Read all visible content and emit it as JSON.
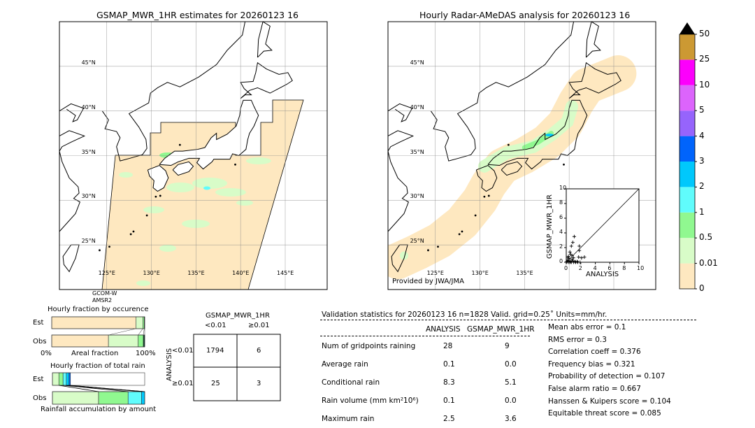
{
  "left_map": {
    "title": "GSMAP_MWR_1HR estimates for 20260123 16",
    "lat_labels": [
      "45°N",
      "40°N",
      "35°N",
      "30°N",
      "25°N"
    ],
    "lon_labels": [
      "125°E",
      "130°E",
      "135°E",
      "140°E",
      "145°E"
    ],
    "satellite_label_1": "GCOM-W",
    "satellite_label_2": "AMSR2"
  },
  "right_map": {
    "title": "Hourly Radar-AMeDAS analysis for 20260123 16",
    "lat_labels": [
      "45°N",
      "40°N",
      "35°N",
      "30°N",
      "25°N"
    ],
    "lon_labels": [
      "125°E",
      "130°E",
      "135°E"
    ],
    "credit": "Provided by JWA/JMA"
  },
  "colorbar": {
    "ticks": [
      "0",
      "0.01",
      "0.5",
      "1",
      "2",
      "3",
      "4",
      "5",
      "10",
      "25",
      "50"
    ],
    "colors": [
      "#fee8c0",
      "#d8fcc8",
      "#90f890",
      "#60fcfc",
      "#00c8fc",
      "#0064fc",
      "#9664fc",
      "#dc64fc",
      "#fc00fc",
      "#cc9933"
    ],
    "over_color": "#000000"
  },
  "scatter": {
    "xlabel": "ANALYSIS",
    "ylabel": "GSMAP_MWR_1HR",
    "ticks": [
      "0",
      "2",
      "4",
      "6",
      "8",
      "10"
    ],
    "range": [
      0,
      10
    ],
    "points": [
      [
        1.1,
        3.5
      ],
      [
        0.9,
        2.7
      ],
      [
        0.7,
        2.2
      ],
      [
        1.8,
        2.2
      ],
      [
        0.5,
        1.4
      ],
      [
        0.6,
        1.1
      ],
      [
        1.8,
        1.6
      ],
      [
        0.3,
        0.8
      ],
      [
        0.8,
        0.9
      ],
      [
        1.7,
        0.7
      ],
      [
        2.1,
        0.6
      ],
      [
        2.5,
        0.7
      ],
      [
        0.2,
        0.3
      ],
      [
        0.4,
        0.2
      ],
      [
        0.6,
        0.1
      ],
      [
        0.9,
        0.2
      ],
      [
        1.2,
        0.1
      ],
      [
        1.5,
        0.1
      ],
      [
        0.1,
        0.1
      ],
      [
        0.3,
        0.0
      ],
      [
        0.5,
        0.0
      ],
      [
        0.7,
        0.0
      ],
      [
        1.0,
        0.0
      ],
      [
        1.3,
        0.0
      ],
      [
        0.8,
        0.4
      ],
      [
        0.4,
        0.5
      ],
      [
        1.0,
        0.6
      ],
      [
        1.6,
        0.0
      ],
      [
        1.9,
        0.0
      ],
      [
        0.2,
        0.6
      ]
    ]
  },
  "occurrence": {
    "title": "Hourly fraction by occurence",
    "est_label": "Est",
    "obs_label": "Obs",
    "axis_left": "0%",
    "axis_mid": "Areal fraction",
    "axis_right": "100%",
    "est_fractions": [
      0.905,
      0.075,
      0.015,
      0.005
    ],
    "obs_fractions": [
      0.61,
      0.32,
      0.055,
      0.015
    ]
  },
  "total_rain": {
    "title": "Hourly fraction of total rain",
    "est_label": "Est",
    "obs_label": "Obs",
    "footer": "Rainfall accumulation by amount",
    "est_fractions": [
      0.07,
      0.045,
      0.035,
      0.03,
      0.015
    ],
    "obs_fractions": [
      0.5,
      0.32,
      0.145,
      0.035
    ]
  },
  "contingency": {
    "col_title": "GSMAP_MWR_1HR",
    "col_headers": [
      "<0.01",
      "≥0.01"
    ],
    "row_title": "ANALYSIS",
    "row_headers": [
      "<0.01",
      "≥0.01"
    ],
    "cells": [
      [
        "1794",
        "6"
      ],
      [
        "25",
        "3"
      ]
    ]
  },
  "stats": {
    "header": "Validation statistics for 20260123 16  n=1828 Valid. grid=0.25˚ Units=mm/hr.",
    "col_analysis": "ANALYSIS",
    "col_gsmap": "GSMAP_MWR_1HR",
    "rows": [
      {
        "label": "Num of gridpoints raining",
        "analysis": "28",
        "gsmap": "9"
      },
      {
        "label": "Average rain",
        "analysis": "0.1",
        "gsmap": "0.0"
      },
      {
        "label": "Conditional rain",
        "analysis": "8.3",
        "gsmap": "5.1"
      },
      {
        "label": "Rain volume (mm km²10⁶)",
        "analysis": "0.1",
        "gsmap": "0.0"
      },
      {
        "label": "Maximum rain",
        "analysis": "2.5",
        "gsmap": "3.6"
      }
    ],
    "scores": [
      "Mean abs error =    0.1",
      "RMS error =    0.3",
      "Correlation coeff =  0.376",
      "Frequency bias =  0.321",
      "Probability of detection =  0.107",
      "False alarm ratio =  0.667",
      "Hanssen & Kuipers score =  0.104",
      "Equitable threat score =  0.085"
    ]
  }
}
